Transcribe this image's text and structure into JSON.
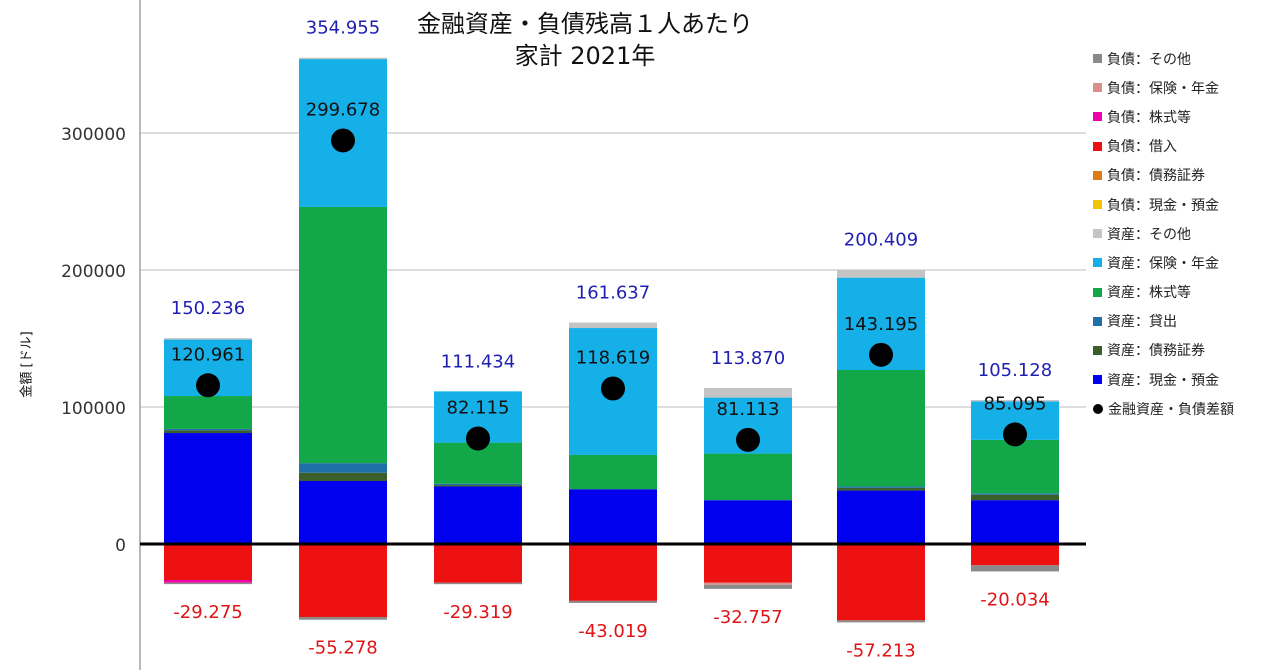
{
  "chart_data": {
    "type": "bar",
    "stacked": true,
    "title": "金融資産・負債残高１人あたり",
    "subtitle": "家計 2021年",
    "ylabel": "金額 [ドル]",
    "xlabel": "",
    "ylim": [
      -90000,
      400000
    ],
    "yticks": [
      {
        "value": 300000,
        "label": "300000"
      },
      {
        "value": 200000,
        "label": "200000"
      },
      {
        "value": 100000,
        "label": "100000"
      },
      {
        "value": 0,
        "label": "0"
      }
    ],
    "grid": true,
    "legend_position": "right",
    "categories": [
      "",
      "",
      "",
      "",
      "",
      "",
      ""
    ],
    "series": [
      {
        "name": "資産：現金・預金",
        "color": "#0000ee",
        "values": [
          81000,
          46000,
          42000,
          40000,
          32000,
          39000,
          32000
        ]
      },
      {
        "name": "資産：債務証券",
        "color": "#3b5e2b",
        "values": [
          2000,
          6000,
          1000,
          0,
          0,
          2000,
          4000
        ]
      },
      {
        "name": "資産：貸出",
        "color": "#1f6fa8",
        "values": [
          1000,
          7000,
          1000,
          0,
          0,
          1000,
          1000
        ]
      },
      {
        "name": "資産：株式等",
        "color": "#12a84a",
        "values": [
          24000,
          187000,
          30000,
          25000,
          34000,
          85000,
          39000
        ]
      },
      {
        "name": "資産：保険・年金",
        "color": "#15b0e8",
        "values": [
          41236,
          107955,
          37434,
          92637,
          40870,
          67409,
          28128
        ]
      },
      {
        "name": "資産：その他",
        "color": "#c4c4c4",
        "values": [
          1000,
          1000,
          0,
          4000,
          7000,
          6000,
          1000
        ]
      },
      {
        "name": "負債：現金・預金",
        "color": "#f2c300",
        "values": [
          0,
          0,
          0,
          0,
          0,
          0,
          0
        ]
      },
      {
        "name": "負債：債務証券",
        "color": "#e07b1a",
        "values": [
          0,
          0,
          0,
          0,
          0,
          0,
          0
        ]
      },
      {
        "name": "負債：借入",
        "color": "#ee1111",
        "values": [
          -26275,
          -53278,
          -28319,
          -41519,
          -28257,
          -55713,
          -15534
        ]
      },
      {
        "name": "負債：株式等",
        "color": "#ee00aa",
        "values": [
          -2000,
          0,
          0,
          0,
          0,
          0,
          0
        ]
      },
      {
        "name": "負債：保険・年金",
        "color": "#d9908a",
        "values": [
          0,
          0,
          0,
          0,
          -1500,
          0,
          0
        ]
      },
      {
        "name": "負債：その他",
        "color": "#8a8a8a",
        "values": [
          -1000,
          -2000,
          -1000,
          -1500,
          -3000,
          -1500,
          -4500
        ]
      }
    ],
    "totals_assets": [
      "150.236",
      "354.955",
      "111.434",
      "161.637",
      "113.870",
      "200.409",
      "105.128"
    ],
    "totals_liabilities": [
      "-29.275",
      "-55.278",
      "-29.319",
      "-43.019",
      "-32.757",
      "-57.213",
      "-20.034"
    ],
    "net": {
      "name": "金融資産・負債差額",
      "values": [
        120961,
        299678,
        82115,
        118619,
        81113,
        143195,
        85095
      ],
      "labels": [
        "120.961",
        "299.678",
        "82.115",
        "118.619",
        "81.113",
        "143.195",
        "85.095"
      ],
      "color": "#000000"
    },
    "legend_order": [
      "負債：その他",
      "負債：保険・年金",
      "負債：株式等",
      "負債：借入",
      "負債：債務証券",
      "負債：現金・預金",
      "資産：その他",
      "資産：保険・年金",
      "資産：株式等",
      "資産：貸出",
      "資産：債務証券",
      "資産：現金・預金",
      "金融資産・負債差額"
    ]
  }
}
